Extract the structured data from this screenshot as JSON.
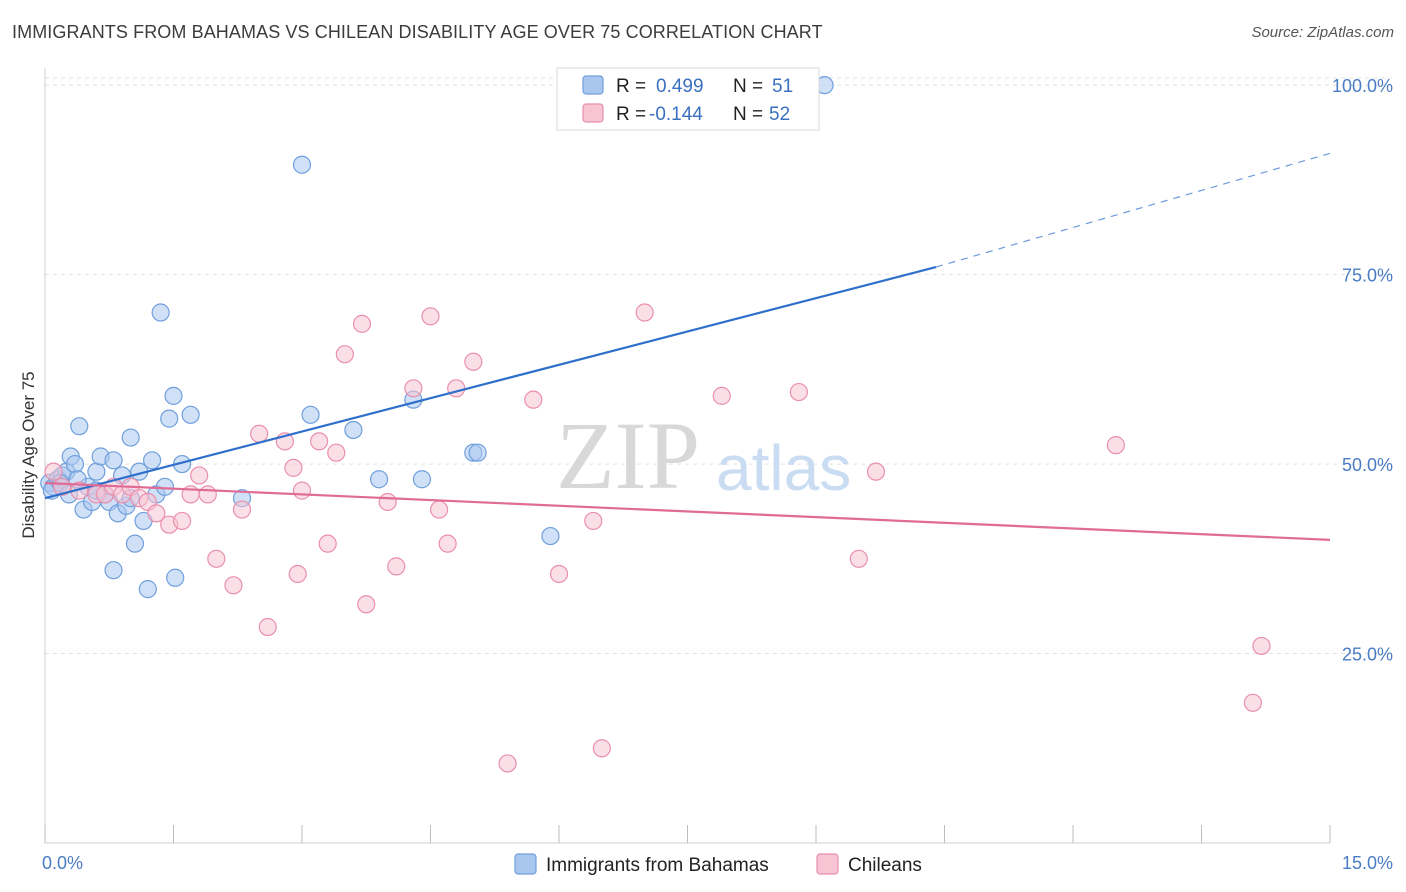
{
  "title": "IMMIGRANTS FROM BAHAMAS VS CHILEAN DISABILITY AGE OVER 75 CORRELATION CHART",
  "source": "Source: ZipAtlas.com",
  "watermark": {
    "zip": "ZIP",
    "atlas": "atlas"
  },
  "chart_data": {
    "type": "scatter",
    "xlabel": "",
    "ylabel": "Disability Age Over 75",
    "xlim": [
      0,
      15
    ],
    "ylim": [
      0,
      102
    ],
    "x_tick_labels": [
      {
        "value": 0,
        "label": "0.0%"
      },
      {
        "value": 15,
        "label": "15.0%"
      }
    ],
    "y_ticks": [
      {
        "value": 25,
        "label": "25.0%"
      },
      {
        "value": 50,
        "label": "50.0%"
      },
      {
        "value": 75,
        "label": "75.0%"
      },
      {
        "value": 100,
        "label": "100.0%"
      }
    ],
    "grid": "horizontal dashed",
    "legend_top": [
      {
        "r_label": "R =",
        "r_value": "0.499",
        "n_label": "N =",
        "n_value": "51"
      },
      {
        "r_label": "R =",
        "r_value": "-0.144",
        "n_label": "N =",
        "n_value": "52"
      }
    ],
    "series": [
      {
        "name": "Immigrants from Bahamas",
        "color": "#6f9fdd",
        "fill": "#a9c6ef",
        "line_color": "#2f6fcc",
        "trend": {
          "x0": 0,
          "y0": 45.5,
          "x1": 10.4,
          "y1": 76,
          "dash_to_x": 15,
          "dash_to_y": 91
        },
        "points": [
          [
            0.05,
            47.5
          ],
          [
            0.1,
            47
          ],
          [
            0.15,
            48
          ],
          [
            0.2,
            48.5
          ],
          [
            0.25,
            49
          ],
          [
            0.3,
            51
          ],
          [
            0.35,
            50
          ],
          [
            0.4,
            55
          ],
          [
            0.45,
            44
          ],
          [
            0.5,
            47
          ],
          [
            0.55,
            45
          ],
          [
            0.6,
            49
          ],
          [
            0.65,
            51
          ],
          [
            0.7,
            46
          ],
          [
            0.75,
            45
          ],
          [
            0.8,
            50.5
          ],
          [
            0.8,
            36
          ],
          [
            0.85,
            43.5
          ],
          [
            0.9,
            48.5
          ],
          [
            0.95,
            44.5
          ],
          [
            1.0,
            53.5
          ],
          [
            1.05,
            39.5
          ],
          [
            1.1,
            49
          ],
          [
            1.15,
            42.5
          ],
          [
            1.2,
            33.5
          ],
          [
            1.25,
            50.5
          ],
          [
            1.3,
            46
          ],
          [
            1.35,
            70
          ],
          [
            1.4,
            47
          ],
          [
            1.45,
            56
          ],
          [
            1.5,
            59
          ],
          [
            1.52,
            35
          ],
          [
            1.6,
            50
          ],
          [
            1.7,
            56.5
          ],
          [
            2.3,
            45.5
          ],
          [
            3.0,
            89.5
          ],
          [
            3.1,
            56.5
          ],
          [
            3.6,
            54.5
          ],
          [
            3.9,
            48
          ],
          [
            4.3,
            58.5
          ],
          [
            4.4,
            48
          ],
          [
            5.0,
            51.5
          ],
          [
            5.05,
            51.5
          ],
          [
            5.9,
            40.5
          ],
          [
            9.1,
            100
          ],
          [
            0.08,
            46.5
          ],
          [
            0.18,
            47.5
          ],
          [
            0.28,
            46
          ],
          [
            0.38,
            48
          ],
          [
            0.6,
            46.5
          ],
          [
            1.0,
            45.5
          ]
        ]
      },
      {
        "name": "Chileans",
        "color": "#e98fae",
        "fill": "#f7c4d4",
        "line_color": "#e06b95",
        "trend": {
          "x0": 0,
          "y0": 47.5,
          "x1": 15,
          "y1": 40
        },
        "points": [
          [
            0.1,
            49
          ],
          [
            0.2,
            47
          ],
          [
            0.4,
            46.5
          ],
          [
            0.6,
            46
          ],
          [
            0.7,
            46
          ],
          [
            0.8,
            47
          ],
          [
            0.9,
            46
          ],
          [
            1.0,
            47
          ],
          [
            1.1,
            45.5
          ],
          [
            1.2,
            45
          ],
          [
            1.3,
            43.5
          ],
          [
            1.45,
            42
          ],
          [
            1.6,
            42.5
          ],
          [
            1.7,
            46
          ],
          [
            1.8,
            48.5
          ],
          [
            1.9,
            46
          ],
          [
            2.0,
            37.5
          ],
          [
            2.2,
            34
          ],
          [
            2.3,
            44
          ],
          [
            2.5,
            54
          ],
          [
            2.6,
            28.5
          ],
          [
            2.8,
            53
          ],
          [
            2.9,
            49.5
          ],
          [
            2.95,
            35.5
          ],
          [
            3.0,
            46.5
          ],
          [
            3.2,
            53
          ],
          [
            3.3,
            39.5
          ],
          [
            3.4,
            51.5
          ],
          [
            3.5,
            64.5
          ],
          [
            3.7,
            68.5
          ],
          [
            3.75,
            31.5
          ],
          [
            4.0,
            45
          ],
          [
            4.1,
            36.5
          ],
          [
            4.3,
            60
          ],
          [
            4.5,
            69.5
          ],
          [
            4.6,
            44
          ],
          [
            4.7,
            39.5
          ],
          [
            4.8,
            60
          ],
          [
            5.0,
            63.5
          ],
          [
            5.4,
            10.5
          ],
          [
            5.7,
            58.5
          ],
          [
            6.0,
            35.5
          ],
          [
            6.4,
            42.5
          ],
          [
            6.5,
            12.5
          ],
          [
            7.0,
            70
          ],
          [
            7.9,
            59
          ],
          [
            8.8,
            59.5
          ],
          [
            9.5,
            37.5
          ],
          [
            9.7,
            49
          ],
          [
            12.5,
            52.5
          ],
          [
            14.2,
            26
          ],
          [
            14.1,
            18.5
          ]
        ]
      }
    ]
  }
}
